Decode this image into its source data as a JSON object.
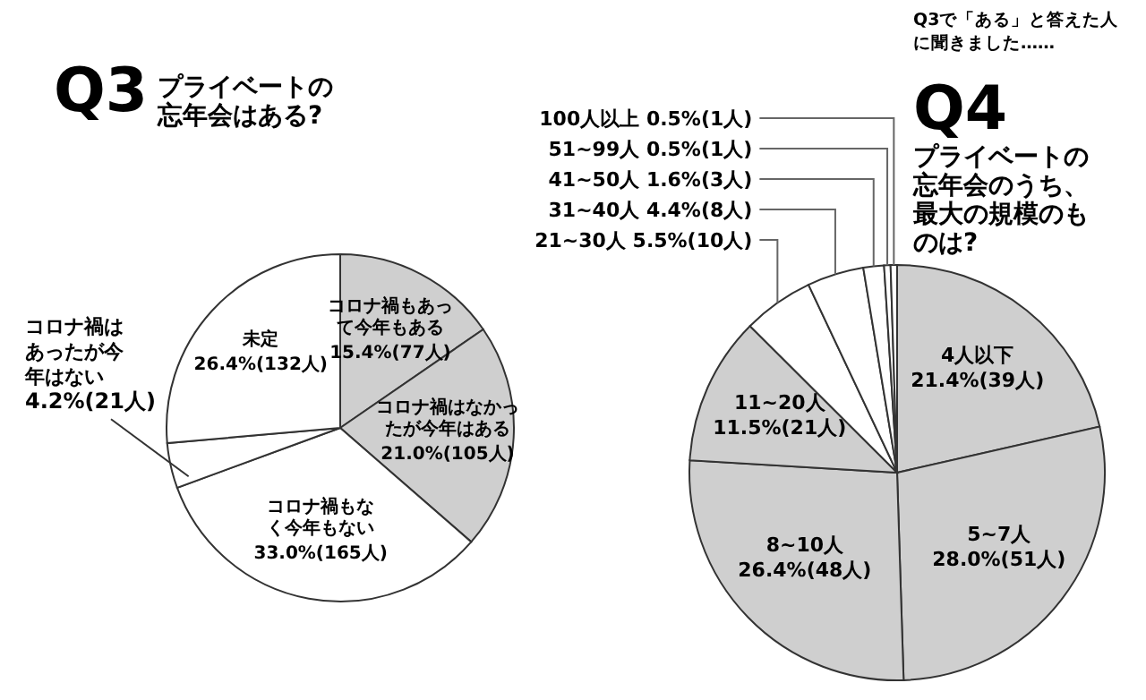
{
  "chart_data": [
    {
      "type": "pie",
      "title": "Q3",
      "subtitle": "プライベートの忘年会はある?",
      "categories": [
        "コロナ禍もあって今年もある",
        "コロナ禍はなかったが今年はある",
        "コロナ禍もなく今年もない",
        "コロナ禍はあったが今年はない",
        "未定"
      ],
      "values": [
        15.4,
        21.0,
        33.0,
        4.2,
        26.4
      ],
      "value_labels": [
        "15.4%(77人)",
        "21.0%(105人)",
        "33.0%(165人)",
        "4.2%(21人)",
        "26.4%(132人)"
      ],
      "colors": [
        "#cfcfcf",
        "#cfcfcf",
        "#ffffff",
        "#ffffff",
        "#ffffff"
      ]
    },
    {
      "type": "pie",
      "title": "Q4",
      "subtitle": "プライベートの忘年会のうち、最大の規模のものは?",
      "annotations": [
        "Q3で「ある」と答えた人に聞きました……"
      ],
      "categories": [
        "4人以下",
        "5~7人",
        "8~10人",
        "11~20人",
        "21~30人",
        "31~40人",
        "41~50人",
        "51~99人",
        "100人以上"
      ],
      "values": [
        21.4,
        28.0,
        26.4,
        11.5,
        5.5,
        4.4,
        1.6,
        0.5,
        0.5
      ],
      "value_labels": [
        "21.4%(39人)",
        "28.0%(51人)",
        "26.4%(48人)",
        "11.5%(21人)",
        "5.5%(10人)",
        "4.4%(8人)",
        "1.6%(3人)",
        "0.5%(1人)",
        "0.5%(1人)"
      ],
      "colors": [
        "#cfcfcf",
        "#cfcfcf",
        "#cfcfcf",
        "#cfcfcf",
        "#ffffff",
        "#ffffff",
        "#ffffff",
        "#ffffff",
        "#ffffff"
      ]
    }
  ]
}
